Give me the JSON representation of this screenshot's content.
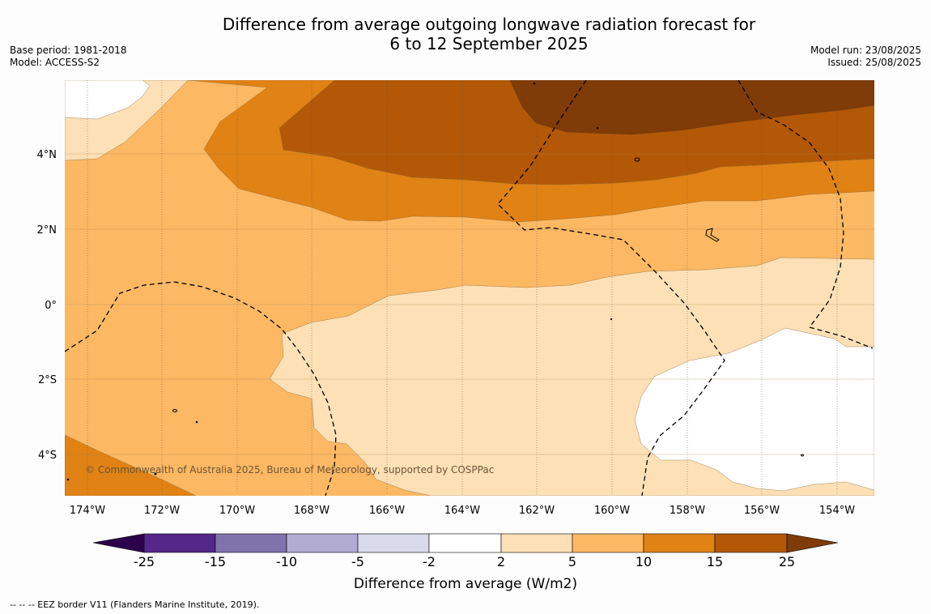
{
  "title": {
    "line1": "Difference from average outgoing longwave radiation forecast for",
    "line2": "6 to 12 September 2025"
  },
  "left_info": {
    "base_period": "Base period: 1981-2018",
    "model": "Model: ACCESS-S2"
  },
  "right_info": {
    "model_run": "Model run: 23/08/2025",
    "issued": "Issued: 25/08/2025"
  },
  "map": {
    "lon_ticks": [
      "174°W",
      "172°W",
      "170°W",
      "168°W",
      "166°W",
      "164°W",
      "162°W",
      "160°W",
      "158°W",
      "156°W",
      "154°W"
    ],
    "lat_ticks": [
      "4°N",
      "2°N",
      "0°",
      "2°S",
      "4°S"
    ],
    "copyright": "© Commonwealth of Australia 2025, Bureau of Meteorology, supported by COSPPac"
  },
  "colorbar": {
    "label": "Difference from average (W/m2)",
    "tick_labels": [
      "-25",
      "-15",
      "-10",
      "-5",
      "-2",
      "2",
      "5",
      "10",
      "15",
      "25"
    ],
    "colors": [
      "#2d004b",
      "#542788",
      "#8073ac",
      "#b2abd2",
      "#d8daeb",
      "#ffffff",
      "#fee0b6",
      "#fdb863",
      "#e08214",
      "#b35806",
      "#7f3b08"
    ]
  },
  "footer": "--  --  -- EEZ border V11 (Flanders Marine Institute, 2019)."
}
